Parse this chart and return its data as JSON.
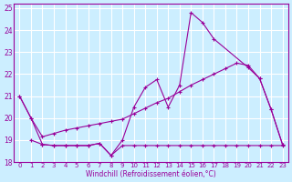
{
  "xlabel": "Windchill (Refroidissement éolien,°C)",
  "background_color": "#cceeff",
  "line_color": "#990099",
  "grid_color": "#ffffff",
  "xlim": [
    -0.5,
    23.5
  ],
  "ylim": [
    18,
    25.2
  ],
  "yticks": [
    18,
    19,
    20,
    21,
    22,
    23,
    24,
    25
  ],
  "xticks": [
    0,
    1,
    2,
    3,
    4,
    5,
    6,
    7,
    8,
    9,
    10,
    11,
    12,
    13,
    14,
    15,
    16,
    17,
    18,
    19,
    20,
    21,
    22,
    23
  ],
  "line1_x": [
    0,
    1,
    2,
    3,
    4,
    5,
    6,
    7,
    8,
    9,
    10,
    11,
    12,
    13,
    14,
    15,
    16,
    17,
    20,
    21,
    22,
    23
  ],
  "line1_y": [
    21.0,
    20.0,
    18.8,
    18.75,
    18.75,
    18.75,
    18.75,
    18.85,
    18.3,
    19.0,
    20.5,
    21.4,
    21.75,
    20.5,
    21.5,
    24.8,
    24.35,
    23.6,
    22.3,
    21.8,
    20.4,
    18.8
  ],
  "line2_x": [
    0,
    1,
    2,
    3,
    4,
    5,
    6,
    7,
    8,
    9,
    10,
    11,
    12,
    13,
    14,
    15,
    16,
    17,
    18,
    19,
    20,
    21,
    22,
    23
  ],
  "line2_y": [
    21.0,
    20.0,
    19.15,
    19.3,
    19.45,
    19.55,
    19.65,
    19.75,
    19.85,
    19.95,
    20.2,
    20.45,
    20.7,
    20.9,
    21.2,
    21.5,
    21.75,
    22.0,
    22.25,
    22.5,
    22.4,
    21.8,
    20.4,
    18.8
  ],
  "line3_x": [
    1,
    2,
    3,
    4,
    5,
    6,
    7,
    8,
    9,
    10,
    11,
    12,
    13,
    14,
    15,
    16,
    17,
    18,
    19,
    20,
    21,
    22,
    23
  ],
  "line3_y": [
    19.0,
    18.8,
    18.75,
    18.75,
    18.75,
    18.75,
    18.85,
    18.3,
    18.75,
    18.75,
    18.75,
    18.75,
    18.75,
    18.75,
    18.75,
    18.75,
    18.75,
    18.75,
    18.75,
    18.75,
    18.75,
    18.75,
    18.75
  ]
}
